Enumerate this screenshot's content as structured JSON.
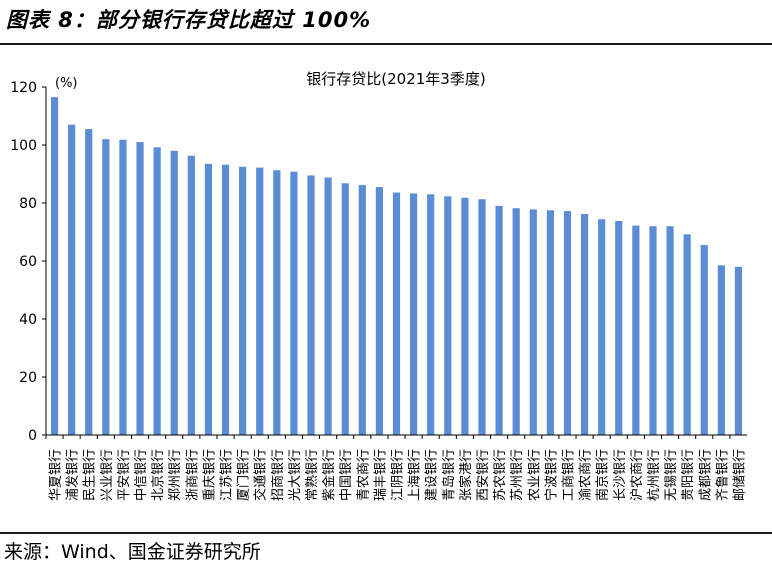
{
  "figure": {
    "title": "图表 8：部分银行存贷比超过 100%",
    "source": "来源：Wind、国金证券研究所"
  },
  "chart_data": {
    "type": "bar",
    "title": "银行存贷比(2021年3季度)",
    "ylabel": "(%)",
    "xlabel": "",
    "ylim": [
      0,
      120
    ],
    "yticks": [
      0,
      20,
      40,
      60,
      80,
      100,
      120
    ],
    "grid": false,
    "bar_color": "#5b8dd6",
    "categories": [
      "华夏银行",
      "浦发银行",
      "民生银行",
      "兴业银行",
      "平安银行",
      "中信银行",
      "北京银行",
      "郑州银行",
      "浙商银行",
      "重庆银行",
      "江苏银行",
      "厦门银行",
      "交通银行",
      "招商银行",
      "光大银行",
      "常熟银行",
      "紫金银行",
      "中国银行",
      "青农商行",
      "瑞丰银行",
      "江阴银行",
      "上海银行",
      "建设银行",
      "青岛银行",
      "张家港行",
      "西安银行",
      "苏农银行",
      "苏州银行",
      "农业银行",
      "宁波银行",
      "工商银行",
      "渝农商行",
      "南京银行",
      "长沙银行",
      "沪农商行",
      "杭州银行",
      "无锡银行",
      "贵阳银行",
      "成都银行",
      "齐鲁银行",
      "邮储银行"
    ],
    "values": [
      116.5,
      107,
      105.5,
      102,
      101.8,
      101,
      99.2,
      98,
      96.3,
      93.5,
      93.2,
      92.5,
      92.2,
      91.3,
      90.8,
      89.5,
      88.8,
      86.8,
      86.2,
      85.5,
      83.6,
      83.3,
      83,
      82.3,
      81.8,
      81.3,
      79,
      78.2,
      77.8,
      77.5,
      77.2,
      76.2,
      74.4,
      73.8,
      72.2,
      72,
      72,
      69.2,
      65.5,
      58.5,
      58
    ]
  }
}
